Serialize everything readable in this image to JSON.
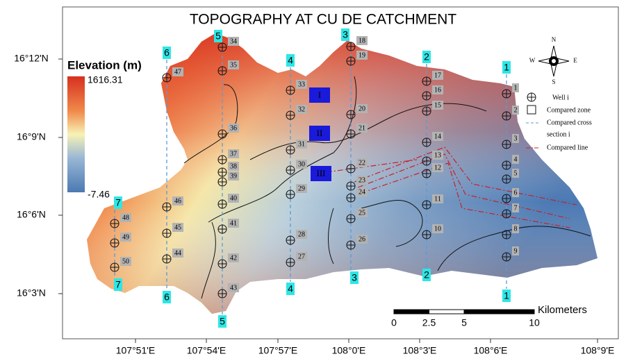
{
  "title": "TOPOGRAPHY AT CU DE CATCHMENT",
  "legend": {
    "title": "Elevation (m)",
    "max": 1616.31,
    "min": -7.46
  },
  "latitude_labels": [
    "16°12'N",
    "16°9'N",
    "16°6'N",
    "16°3'N"
  ],
  "longitude_labels": [
    "107°51'E",
    "107°54'E",
    "107°57'E",
    "108°0'E",
    "108°3'E",
    "108°6'E",
    "108°9'E"
  ],
  "wells": [
    "1",
    "2",
    "3",
    "4",
    "5",
    "6",
    "7",
    "8",
    "9",
    "10",
    "11",
    "12",
    "13",
    "14",
    "15",
    "16",
    "17",
    "18",
    "19",
    "20",
    "21",
    "22",
    "23",
    "24",
    "25",
    "26",
    "27",
    "28",
    "29",
    "30",
    "31",
    "32",
    "33",
    "34",
    "35",
    "36",
    "37",
    "38",
    "39",
    "40",
    "41",
    "42",
    "43",
    "44",
    "45",
    "46",
    "47",
    "48",
    "49",
    "50"
  ],
  "cross_sections": [
    "1",
    "2",
    "3",
    "4",
    "5",
    "6",
    "7"
  ],
  "zones": [
    "I",
    "II",
    "III"
  ],
  "compass": {
    "n": "N",
    "s": "S",
    "e": "E",
    "w": "W"
  },
  "map_legend": {
    "well": "Well i",
    "zone": "Compared zone",
    "cross_section": [
      "Compared cross",
      "section i"
    ],
    "line": "Compared line"
  },
  "scale_bar": {
    "ticks": [
      0,
      2.5,
      5,
      10
    ],
    "unit": "Kilometers"
  }
}
